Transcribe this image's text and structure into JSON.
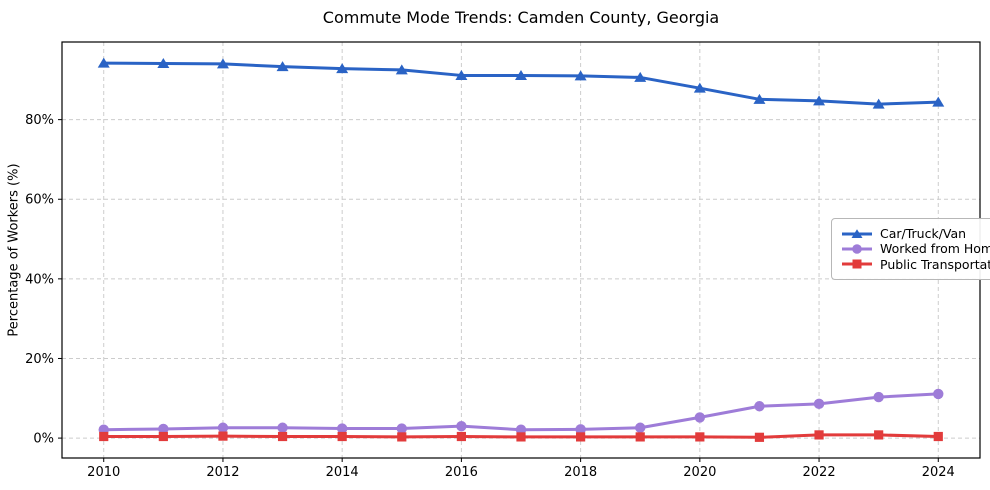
{
  "title": "Commute Mode Trends: Camden County, Georgia",
  "chart_data": {
    "type": "line",
    "title": "Commute Mode Trends: Camden County, Georgia",
    "xlabel": "",
    "ylabel": "Percentage of Workers (%)",
    "x": [
      2010,
      2011,
      2012,
      2013,
      2014,
      2015,
      2016,
      2017,
      2018,
      2019,
      2020,
      2021,
      2022,
      2023,
      2024
    ],
    "series": [
      {
        "name": "Car/Truck/Van",
        "color": "#2a63c5",
        "marker": "triangle",
        "values": [
          94.2,
          94.1,
          94.0,
          93.3,
          92.8,
          92.5,
          91.1,
          91.1,
          91.0,
          90.6,
          87.9,
          85.1,
          84.7,
          83.9,
          84.4
        ]
      },
      {
        "name": "Worked from Home",
        "color": "#9e7cd8",
        "marker": "circle",
        "values": [
          2.1,
          2.3,
          2.6,
          2.6,
          2.4,
          2.4,
          3.0,
          2.1,
          2.2,
          2.6,
          5.2,
          8.0,
          8.6,
          10.3,
          11.1
        ]
      },
      {
        "name": "Public Transportation",
        "color": "#e23b3b",
        "marker": "square",
        "values": [
          0.4,
          0.4,
          0.5,
          0.4,
          0.4,
          0.3,
          0.4,
          0.3,
          0.3,
          0.3,
          0.3,
          0.2,
          0.8,
          0.8,
          0.4
        ]
      }
    ],
    "xticks": [
      2010,
      2012,
      2014,
      2016,
      2018,
      2020,
      2022,
      2024
    ],
    "xtick_labels": [
      "2010",
      "2012",
      "2014",
      "2016",
      "2018",
      "2020",
      "2022",
      "2024"
    ],
    "yticks": [
      0,
      20,
      40,
      60,
      80
    ],
    "ytick_labels": [
      "0%",
      "20%",
      "40%",
      "60%",
      "80%"
    ],
    "xlim": [
      2009.3,
      2024.7
    ],
    "ylim": [
      -5,
      99.5
    ],
    "grid": true,
    "grid_color": "#cccccc",
    "legend_position": "center right"
  }
}
